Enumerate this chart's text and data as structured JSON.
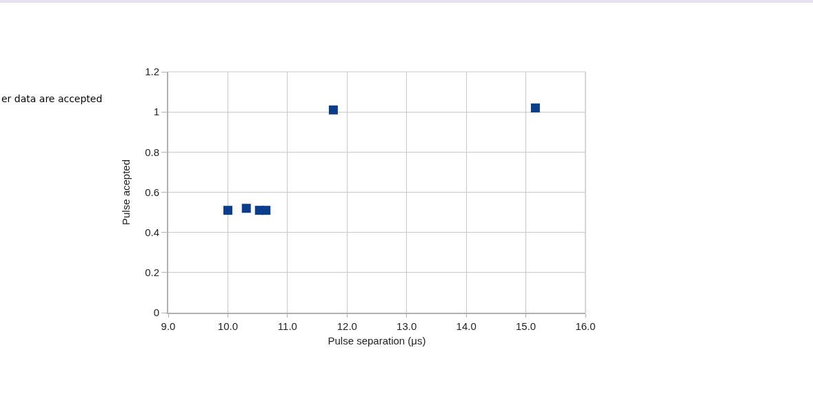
{
  "chart_data": {
    "type": "scatter",
    "xlabel": "Pulse separation (μs)",
    "ylabel": "Pulse acepted",
    "x": [
      10.0,
      10.31,
      10.53,
      10.64,
      11.77,
      15.16
    ],
    "series": [
      {
        "color": "#0a3d8c",
        "values": [
          0.51,
          0.52,
          0.51,
          0.51,
          1.01,
          1.02
        ]
      }
    ],
    "xlim": [
      9,
      16
    ],
    "xticks": [
      {
        "value": 9,
        "label": "9.0"
      },
      {
        "value": 10,
        "label": "10.0"
      },
      {
        "value": 11,
        "label": "11.0"
      },
      {
        "value": 12,
        "label": "12.0"
      },
      {
        "value": 13,
        "label": "13.0"
      },
      {
        "value": 14,
        "label": "14.0"
      },
      {
        "value": 15,
        "label": "15.0"
      },
      {
        "value": 16,
        "label": "16.0"
      }
    ],
    "ylim": [
      0,
      1.2
    ],
    "yticks": [
      0,
      0.2,
      0.4,
      0.6,
      0.8,
      1,
      1.2
    ],
    "grid": true,
    "marker": "square",
    "annotations": [
      "er data are accepted"
    ]
  }
}
